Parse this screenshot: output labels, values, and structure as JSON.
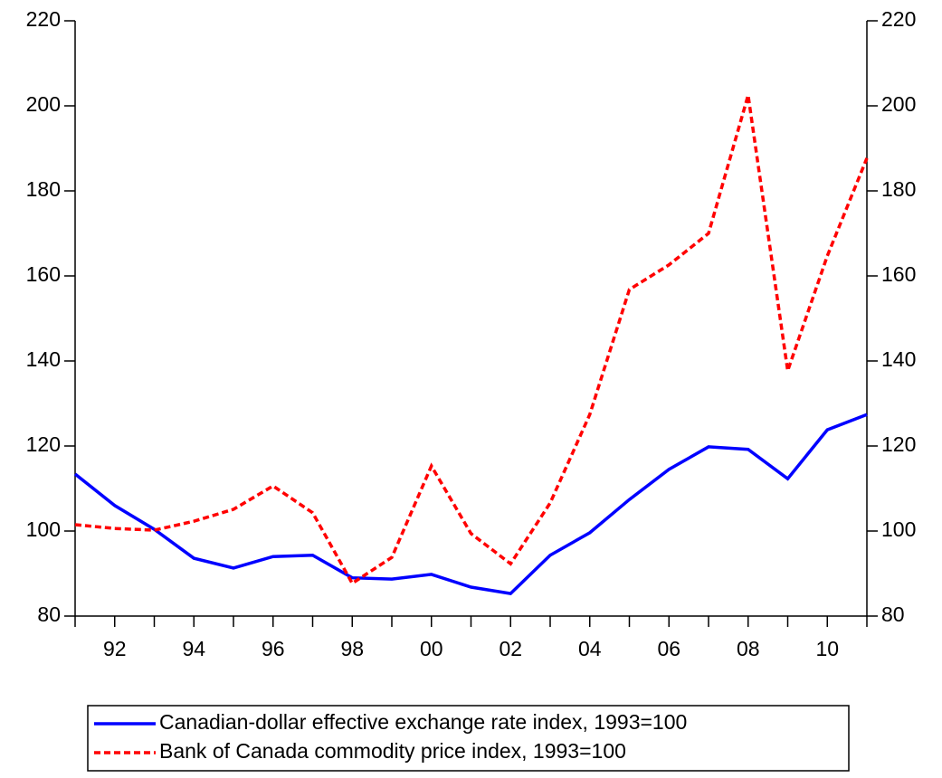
{
  "chart_data": {
    "type": "line",
    "x": [
      1991,
      1992,
      1993,
      1994,
      1995,
      1996,
      1997,
      1998,
      1999,
      2000,
      2001,
      2002,
      2003,
      2004,
      2005,
      2006,
      2007,
      2008,
      2009,
      2010,
      2011
    ],
    "series": [
      {
        "name": "Canadian-dollar effective exchange rate index, 1993=100",
        "color": "#0000ff",
        "dash": "solid",
        "values": [
          113.4,
          106,
          100.4,
          93.6,
          91.3,
          94,
          94.3,
          89,
          88.7,
          89.8,
          86.8,
          85.3,
          94.3,
          99.6,
          107.4,
          114.5,
          119.8,
          119.2,
          112.3,
          123.8,
          127.4
        ]
      },
      {
        "name": "Bank of Canada commodity price index, 1993=100",
        "color": "#ff0000",
        "dash": "dashed",
        "values": [
          101.5,
          100.6,
          100.2,
          102.3,
          105.1,
          110.6,
          104.3,
          87.7,
          93.8,
          115.3,
          99.4,
          92.3,
          106.6,
          127.4,
          156.8,
          162.6,
          170,
          202.5,
          137.7,
          164.7,
          187.7
        ]
      }
    ],
    "xlim": [
      1991,
      2011
    ],
    "xticks": [
      {
        "value": 1992,
        "label": "92"
      },
      {
        "value": 1994,
        "label": "94"
      },
      {
        "value": 1996,
        "label": "96"
      },
      {
        "value": 1998,
        "label": "98"
      },
      {
        "value": 2000,
        "label": "00"
      },
      {
        "value": 2002,
        "label": "02"
      },
      {
        "value": 2004,
        "label": "04"
      },
      {
        "value": 2006,
        "label": "06"
      },
      {
        "value": 2008,
        "label": "08"
      },
      {
        "value": 2010,
        "label": "10"
      }
    ],
    "xminorticks": [
      1991,
      1993,
      1995,
      1997,
      1999,
      2001,
      2003,
      2005,
      2007,
      2009,
      2011
    ],
    "ylim": [
      80,
      220
    ],
    "yticks": [
      80,
      100,
      120,
      140,
      160,
      180,
      200,
      220
    ],
    "y2lim": [
      80,
      220
    ],
    "y2ticks": [
      80,
      100,
      120,
      140,
      160,
      180,
      200,
      220
    ],
    "grid": false,
    "legend": "bottom"
  }
}
